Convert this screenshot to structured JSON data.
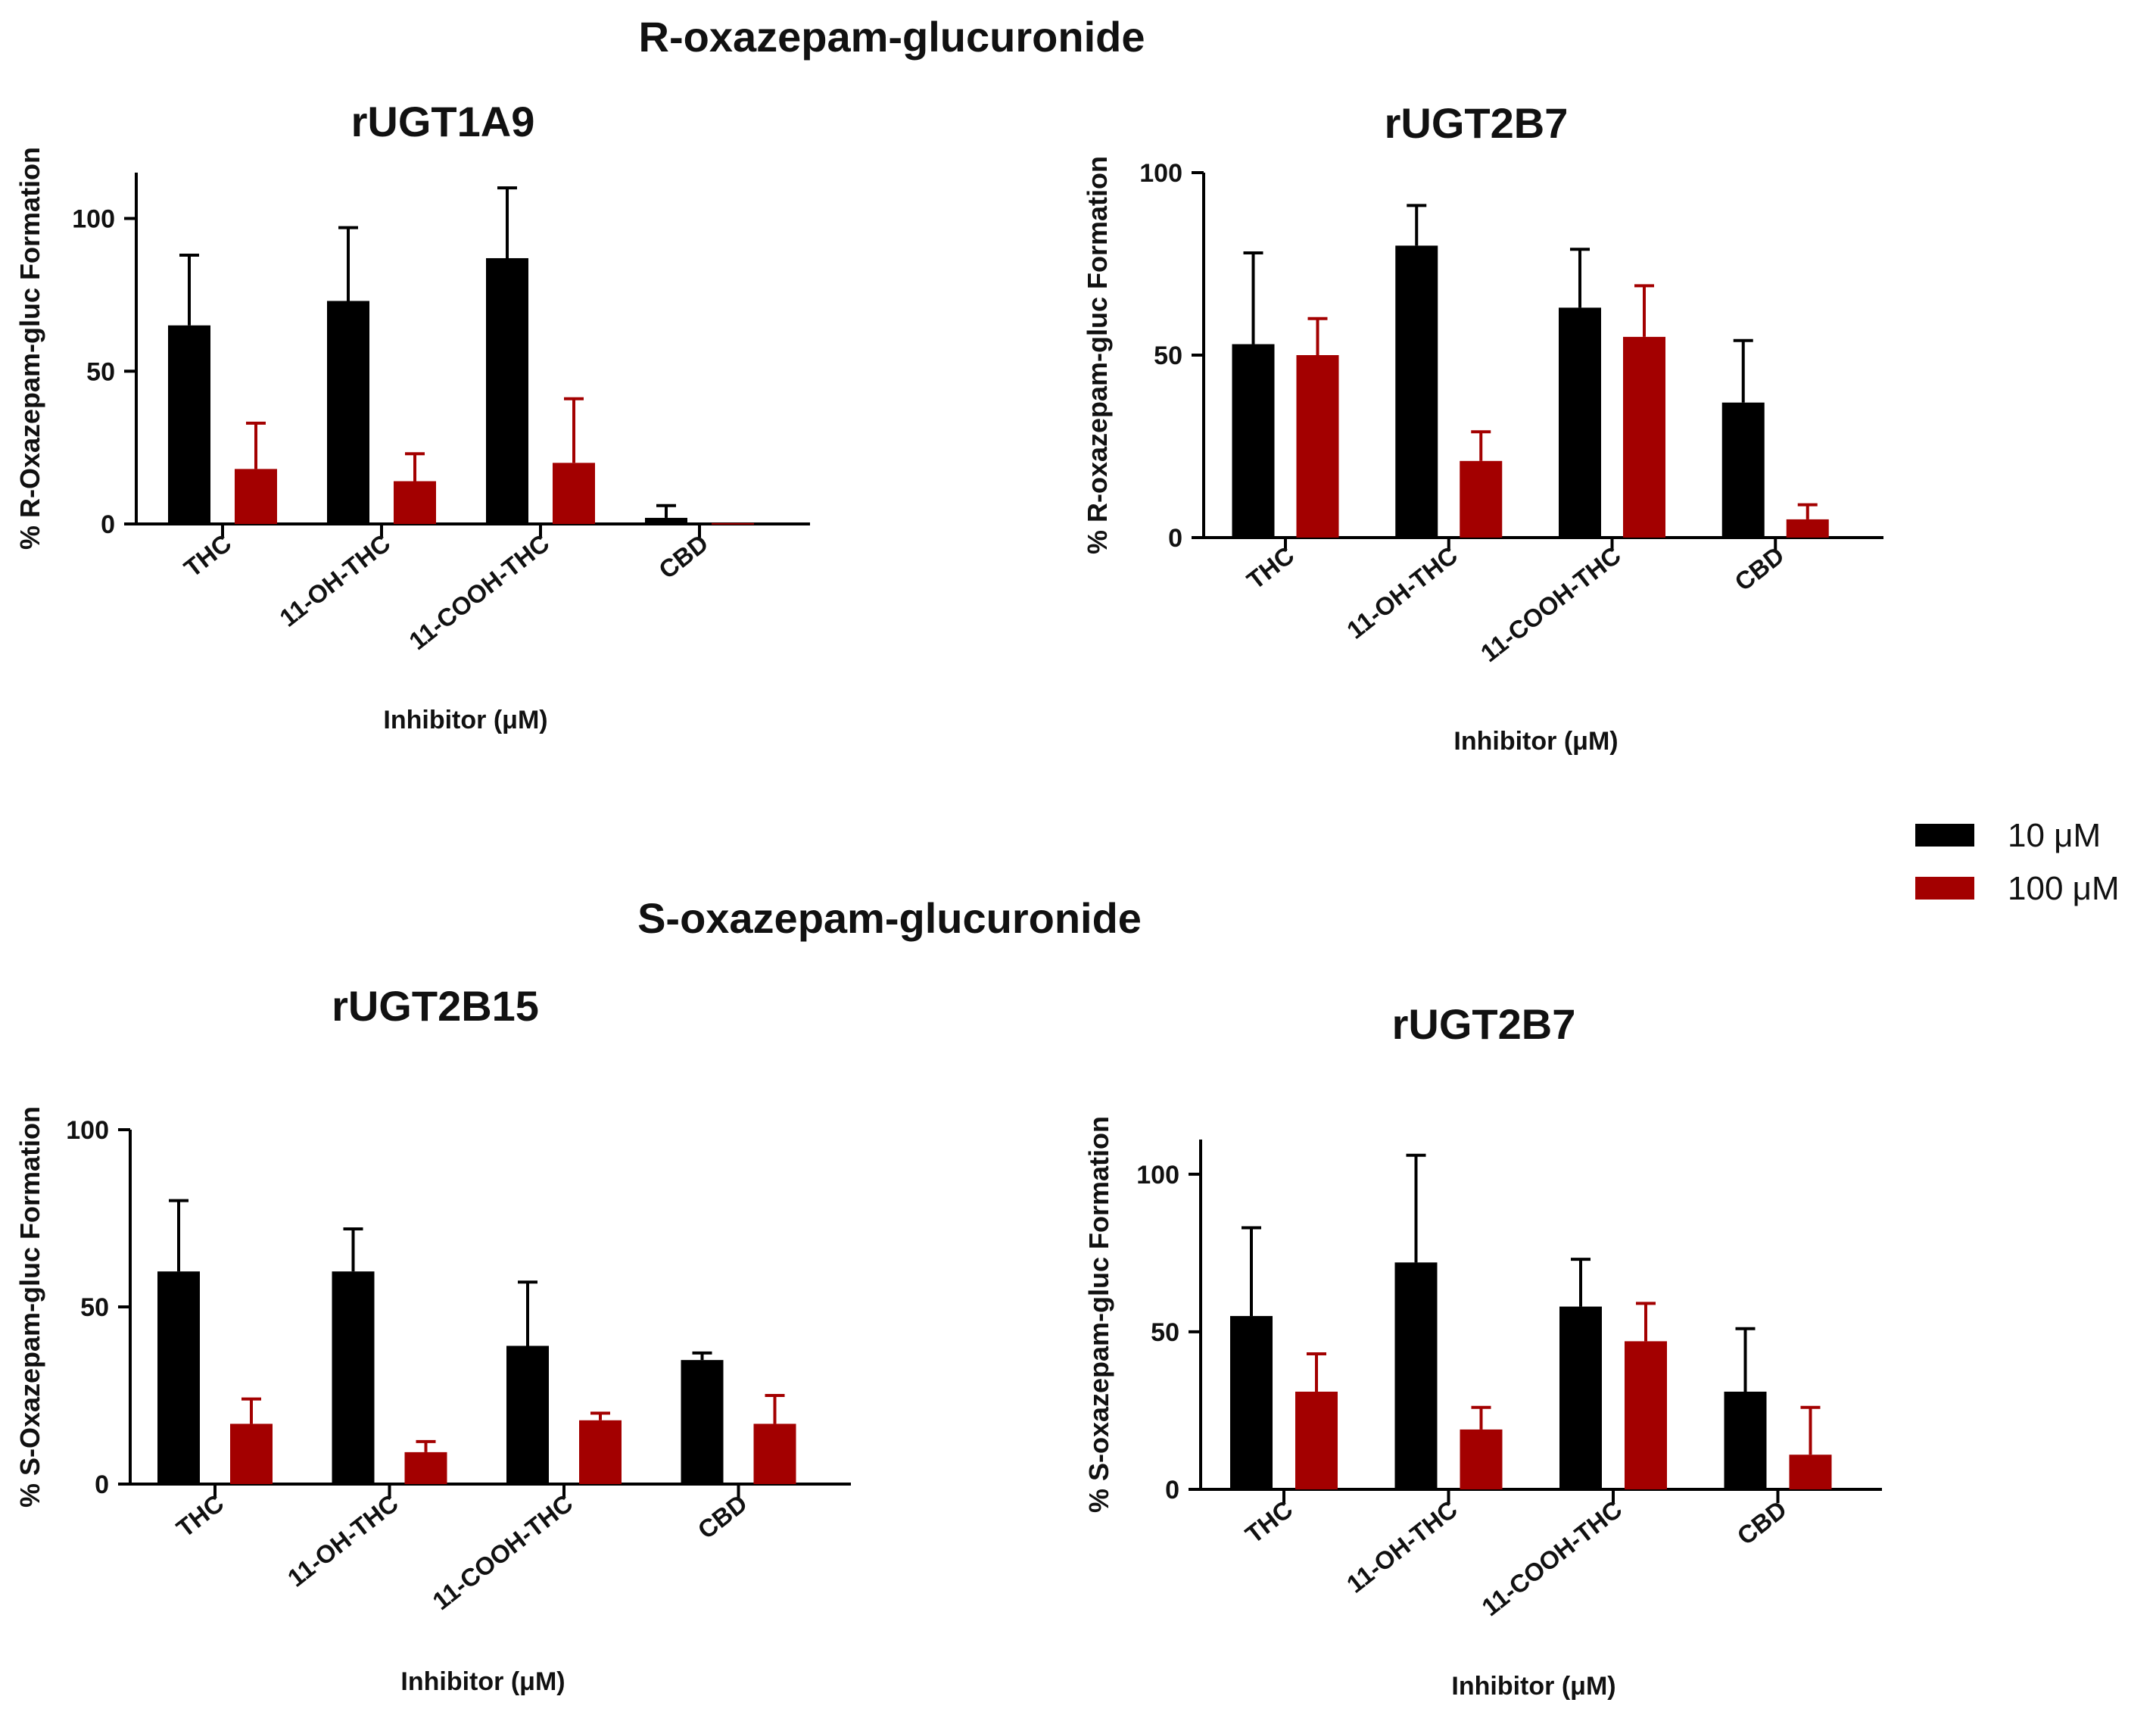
{
  "sections": {
    "r_title": "R-oxazepam-glucuronide",
    "s_title": "S-oxazepam-glucuronide"
  },
  "legend": {
    "items": [
      {
        "label": "10 μM",
        "color": "#000000"
      },
      {
        "label": "100 μM",
        "color": "#a30000"
      }
    ]
  },
  "chart_data": [
    {
      "type": "bar",
      "title": "rUGT1A9",
      "section": "R-oxazepam-glucuronide",
      "xlabel": "Inhibitor (μM)",
      "ylabel": "% R-Oxazepam-gluc Formation",
      "categories": [
        "THC",
        "11-OH-THC",
        "11-COOH-THC",
        "CBD"
      ],
      "ylim": [
        0,
        115
      ],
      "yticks": [
        0,
        50,
        100
      ],
      "series": [
        {
          "name": "10 μM",
          "values": [
            65,
            73,
            87,
            2
          ],
          "errors": [
            23,
            24,
            23,
            4
          ]
        },
        {
          "name": "100 μM",
          "values": [
            18,
            14,
            20,
            0.3
          ],
          "errors": [
            15,
            9,
            21,
            0
          ]
        }
      ]
    },
    {
      "type": "bar",
      "title": "rUGT2B7",
      "section": "R-oxazepam-glucuronide",
      "xlabel": "Inhibitor (μM)",
      "ylabel": "% R-oxazepam-gluc Formation",
      "categories": [
        "THC",
        "11-OH-THC",
        "11-COOH-THC",
        "CBD"
      ],
      "ylim": [
        0,
        100
      ],
      "yticks": [
        0,
        50,
        100
      ],
      "series": [
        {
          "name": "10 μM",
          "values": [
            53,
            80,
            63,
            37
          ],
          "errors": [
            25,
            11,
            16,
            17
          ]
        },
        {
          "name": "100 μM",
          "values": [
            50,
            21,
            55,
            5
          ],
          "errors": [
            10,
            8,
            14,
            4
          ]
        }
      ]
    },
    {
      "type": "bar",
      "title": "rUGT2B15",
      "section": "S-oxazepam-glucuronide",
      "xlabel": "Inhibitor (μM)",
      "ylabel": "% S-Oxazepam-gluc Formation",
      "categories": [
        "THC",
        "11-OH-THC",
        "11-COOH-THC",
        "CBD"
      ],
      "ylim": [
        0,
        100
      ],
      "yticks": [
        0,
        50,
        100
      ],
      "series": [
        {
          "name": "10 μM",
          "values": [
            60,
            60,
            39,
            35
          ],
          "errors": [
            20,
            12,
            18,
            2
          ]
        },
        {
          "name": "100 μM",
          "values": [
            17,
            9,
            18,
            17
          ],
          "errors": [
            7,
            3,
            2,
            8
          ]
        }
      ]
    },
    {
      "type": "bar",
      "title": "rUGT2B7",
      "section": "S-oxazepam-glucuronide",
      "xlabel": "Inhibitor (μM)",
      "ylabel": "% S-oxazepam-gluc Formation",
      "categories": [
        "THC",
        "11-OH-THC",
        "11-COOH-THC",
        "CBD"
      ],
      "ylim": [
        0,
        111
      ],
      "yticks": [
        0,
        50,
        100
      ],
      "series": [
        {
          "name": "10 μM",
          "values": [
            55,
            72,
            58,
            31
          ],
          "errors": [
            28,
            34,
            15,
            20
          ]
        },
        {
          "name": "100 μM",
          "values": [
            31,
            19,
            47,
            11
          ],
          "errors": [
            12,
            7,
            12,
            15
          ]
        }
      ]
    }
  ]
}
